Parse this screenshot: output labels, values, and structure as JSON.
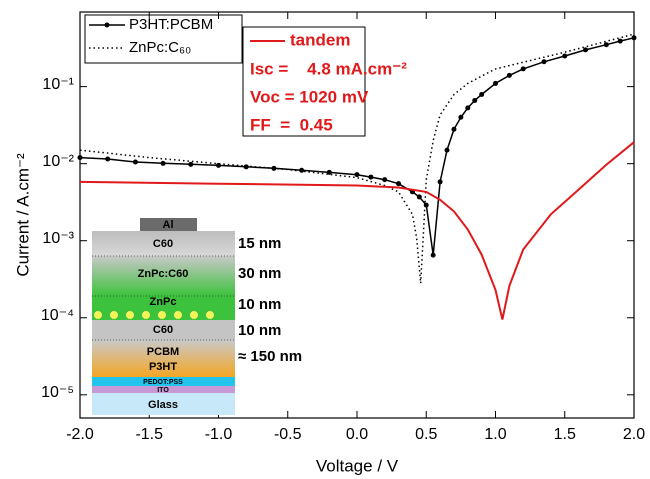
{
  "chart_data": {
    "type": "line",
    "x_label": "Voltage / V",
    "y_label": "Current / A.cm⁻²",
    "log_y": true,
    "xlim": [
      -2,
      2
    ],
    "ylim": [
      5e-06,
      0.93
    ],
    "xticks": [
      {
        "value": -2,
        "label": "-2.0"
      },
      {
        "value": -1.5,
        "label": "-1.5"
      },
      {
        "value": -1,
        "label": "-1.0"
      },
      {
        "value": -0.5,
        "label": "-0.5"
      },
      {
        "value": 0,
        "label": "0.0"
      },
      0.5,
      {
        "value": 1,
        "label": "1.0"
      },
      1.5,
      {
        "value": 2,
        "label": "2.0"
      }
    ],
    "yticks": [
      {
        "value": 1e-05,
        "label": "10⁻⁵"
      },
      {
        "value": 0.0001,
        "label": "10⁻⁴"
      },
      {
        "value": 0.001,
        "label": "10⁻³"
      },
      {
        "value": 0.01,
        "label": "10⁻²"
      },
      {
        "value": 0.1,
        "label": "10⁻¹"
      }
    ],
    "series": [
      {
        "name": "P3HT:PCBM",
        "color": "#000000",
        "style": "line-dot",
        "x": [
          -2,
          -1.8,
          -1.6,
          -1.4,
          -1.2,
          -1,
          -0.8,
          -0.6,
          -0.4,
          -0.2,
          0,
          0.1,
          0.2,
          0.3,
          0.4,
          0.45,
          0.5,
          0.55,
          0.6,
          0.65,
          0.7,
          0.75,
          0.8,
          0.85,
          0.9,
          1,
          1.1,
          1.2,
          1.35,
          1.5,
          1.65,
          1.8,
          1.9,
          2
        ],
        "values": [
          0.012,
          0.0115,
          0.0105,
          0.0101,
          0.0098,
          0.0095,
          0.0091,
          0.0087,
          0.0082,
          0.0077,
          0.0072,
          0.0067,
          0.0062,
          0.0055,
          0.0043,
          0.0037,
          0.0029,
          0.00065,
          0.0058,
          0.015,
          0.028,
          0.04,
          0.053,
          0.066,
          0.079,
          0.11,
          0.14,
          0.17,
          0.21,
          0.25,
          0.3,
          0.35,
          0.39,
          0.43
        ]
      },
      {
        "name": "ZnPc:C₆₀",
        "color": "#000000",
        "style": "dotted",
        "x": [
          -2,
          -1.5,
          -1,
          -0.5,
          0,
          0.2,
          0.3,
          0.4,
          0.43,
          0.46,
          0.5,
          0.55,
          0.6,
          0.7,
          0.8,
          1,
          1.5,
          2
        ],
        "values": [
          0.015,
          0.012,
          0.01,
          0.0084,
          0.0066,
          0.0052,
          0.0043,
          0.0022,
          0.0011,
          0.00028,
          0.0062,
          0.02,
          0.043,
          0.079,
          0.11,
          0.17,
          0.28,
          0.48
        ]
      },
      {
        "name": "tandem",
        "color": "#e0191b",
        "style": "line",
        "x": [
          -2,
          -1,
          0,
          0.3,
          0.5,
          0.6,
          0.7,
          0.8,
          0.9,
          1,
          1.05,
          1.1,
          1.2,
          1.4,
          1.6,
          1.8,
          2
        ],
        "values": [
          0.0058,
          0.0055,
          0.0052,
          0.0049,
          0.0043,
          0.0034,
          0.0024,
          0.0014,
          0.00066,
          0.00023,
          9.5e-05,
          0.00026,
          0.00077,
          0.0022,
          0.0046,
          0.0097,
          0.019
        ]
      }
    ],
    "parameters": [
      "Isc =    4.8 mA.cm⁻²",
      "Voc = 1020 mV",
      "FF  =  0.45"
    ],
    "inset": {
      "layers": [
        "Al",
        "C60",
        "ZnPc:C60",
        "ZnPc",
        "C60",
        "PCBM",
        "P3HT",
        "PEDOT:PSS",
        "ITO",
        "Glass"
      ],
      "thicknesses": [
        "15 nm",
        "30 nm",
        "10 nm",
        "10 nm",
        "≈ 150 nm"
      ]
    }
  }
}
